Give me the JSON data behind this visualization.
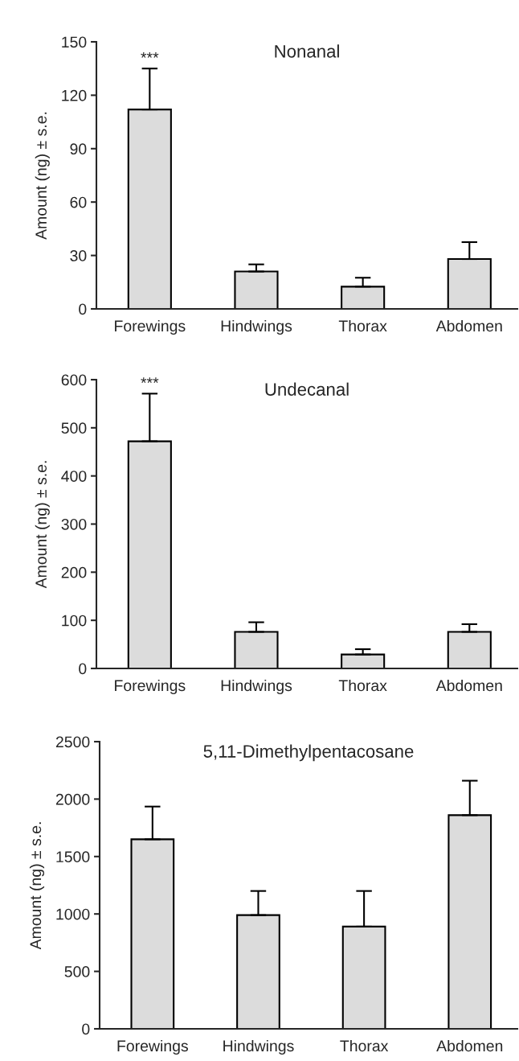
{
  "chart_data": [
    {
      "type": "bar",
      "title": "Nonanal",
      "ylabel": "Amount (ng) ± s.e.",
      "categories": [
        "Forewings",
        "Hindwings",
        "Thorax",
        "Abdomen"
      ],
      "values": [
        112,
        21,
        12.5,
        28
      ],
      "errors": [
        [
          112,
          135
        ],
        [
          21,
          25
        ],
        [
          12.5,
          17.5
        ],
        [
          28,
          37.5
        ]
      ],
      "color": "#dcdcdc",
      "ylim": [
        0,
        150
      ],
      "yticks": [
        0,
        30,
        60,
        90,
        120,
        150
      ],
      "annotations": [
        "***"
      ]
    },
    {
      "type": "bar",
      "title": "Undecanal",
      "ylabel": "Amount (ng) ± s.e.",
      "categories": [
        "Forewings",
        "Hindwings",
        "Thorax",
        "Abdomen"
      ],
      "values": [
        472,
        76,
        29,
        76
      ],
      "errors": [
        [
          472,
          571
        ],
        [
          76,
          96
        ],
        [
          29,
          40
        ],
        [
          76,
          92
        ]
      ],
      "color": "#dcdcdc",
      "ylim": [
        0,
        600
      ],
      "yticks": [
        0,
        100,
        200,
        300,
        400,
        500,
        600
      ],
      "annotations": [
        "***"
      ]
    },
    {
      "type": "bar",
      "title": "5,11-Dimethylpentacosane",
      "ylabel": "Amount (ng) ± s.e.",
      "categories": [
        "Forewings",
        "Hindwings",
        "Thorax",
        "Abdomen"
      ],
      "values": [
        1650,
        990,
        890,
        1860
      ],
      "errors": [
        [
          1650,
          1935
        ],
        [
          990,
          1200
        ],
        [
          890,
          1200
        ],
        [
          1860,
          2160
        ]
      ],
      "color": "#dcdcdc",
      "ylim": [
        0,
        2500
      ],
      "yticks": [
        0,
        500,
        1000,
        1500,
        2000,
        2500
      ]
    }
  ]
}
